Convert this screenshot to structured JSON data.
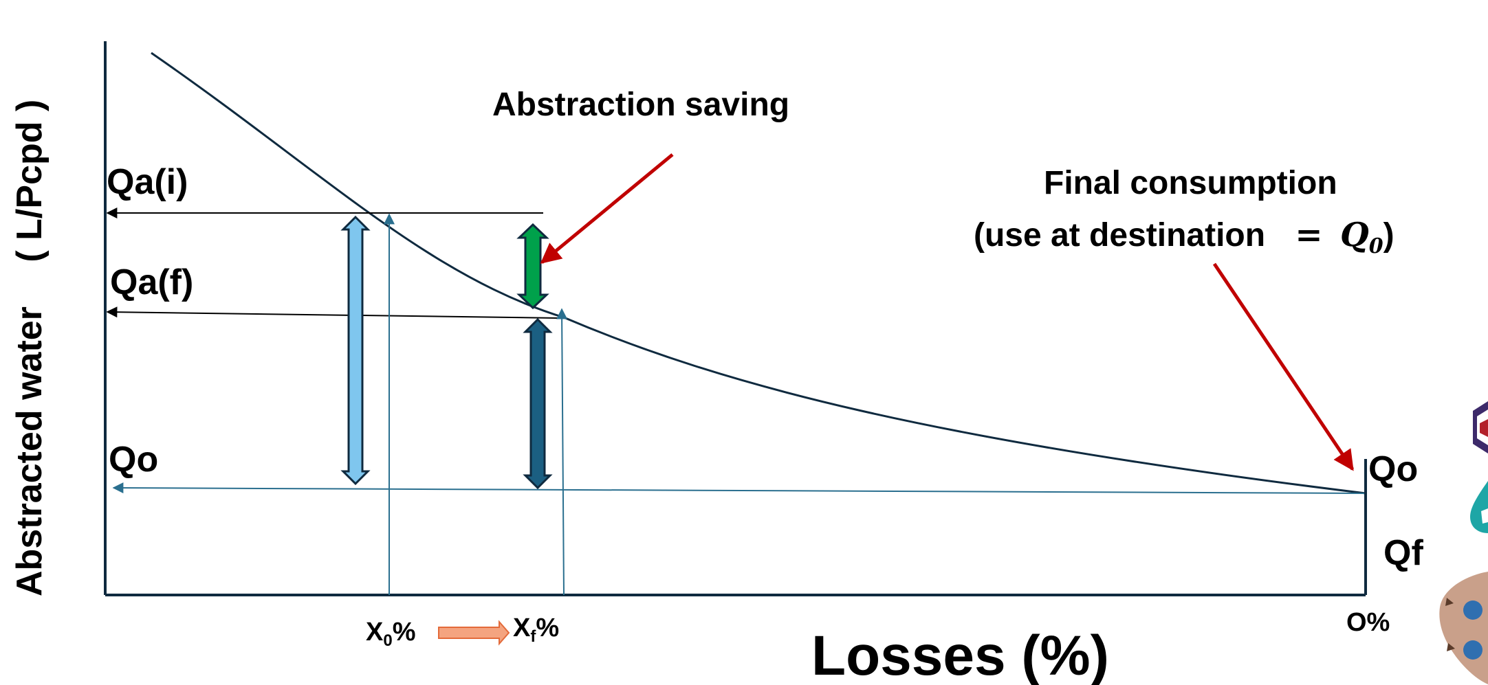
{
  "diagram": {
    "y_axis_title_part1": "Abstracted water",
    "y_axis_title_part2": "( L/Pcpd )",
    "x_axis_title": "Losses (%)",
    "labels": {
      "qa_i": "Qa(i)",
      "qa_f": "Qa(f)",
      "qo_left": "Qo",
      "qo_right": "Qo",
      "qf": "Qf"
    },
    "ticks": {
      "x0_base": "X",
      "x0_sub": "0",
      "x0_pct": "%",
      "xf_base": "X",
      "xf_sub": "f",
      "xf_pct": "%",
      "zero": "O%"
    },
    "annotations": {
      "abstraction_saving": "Abstraction saving",
      "final_consumption_line1": "Final consumption",
      "final_consumption_line2": "(use at destination",
      "final_consumption_eq": "=",
      "final_consumption_q": "Q",
      "final_consumption_sub": "0",
      "final_consumption_close": ")"
    },
    "colors": {
      "curve": "#0f2a3f",
      "axis": "#0f2a3f",
      "light_blue_arrow": "#7fc6ee",
      "dark_teal_arrow": "#1b5f82",
      "green_arrow": "#00a14b",
      "red_pointer": "#c00000",
      "orange_arrow": "#f4a480",
      "guide_line": "#2a6f8f"
    }
  }
}
